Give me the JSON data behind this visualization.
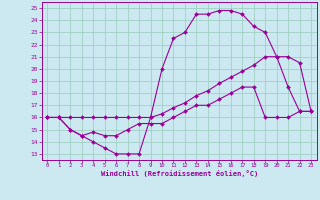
{
  "xlabel": "Windchill (Refroidissement éolien,°C)",
  "xlim": [
    -0.5,
    23.5
  ],
  "ylim": [
    12.5,
    25.5
  ],
  "xticks": [
    0,
    1,
    2,
    3,
    4,
    5,
    6,
    7,
    8,
    9,
    10,
    11,
    12,
    13,
    14,
    15,
    16,
    17,
    18,
    19,
    20,
    21,
    22,
    23
  ],
  "yticks": [
    13,
    14,
    15,
    16,
    17,
    18,
    19,
    20,
    21,
    22,
    23,
    24,
    25
  ],
  "bg_color": "#cce8f0",
  "line_color": "#990099",
  "grid_color": "#99ccbb",
  "line1_x": [
    0,
    1,
    2,
    3,
    4,
    5,
    6,
    7,
    8,
    9,
    10,
    11,
    12,
    13,
    14,
    15,
    16,
    17,
    18,
    19,
    20,
    21,
    22,
    23
  ],
  "line1_y": [
    16,
    16,
    15,
    14.5,
    14,
    13.5,
    13,
    13,
    13,
    16,
    20,
    22.5,
    23,
    24.5,
    24.5,
    24.8,
    24.8,
    24.5,
    23.5,
    23,
    21,
    18.5,
    16.5,
    16.5
  ],
  "line2_x": [
    0,
    1,
    2,
    3,
    4,
    5,
    6,
    7,
    8,
    9,
    10,
    11,
    12,
    13,
    14,
    15,
    16,
    17,
    18,
    19,
    20,
    21,
    22,
    23
  ],
  "line2_y": [
    16,
    16,
    16,
    16,
    16,
    16,
    16,
    16,
    16,
    16,
    16.3,
    16.8,
    17.2,
    17.8,
    18.2,
    18.8,
    19.3,
    19.8,
    20.3,
    21,
    21,
    21,
    20.5,
    16.5
  ],
  "line3_x": [
    0,
    1,
    2,
    3,
    4,
    5,
    6,
    7,
    8,
    9,
    10,
    11,
    12,
    13,
    14,
    15,
    16,
    17,
    18,
    19,
    20,
    21,
    22,
    23
  ],
  "line3_y": [
    16,
    16,
    15,
    14.5,
    14.8,
    14.5,
    14.5,
    15,
    15.5,
    15.5,
    15.5,
    16,
    16.5,
    17,
    17,
    17.5,
    18,
    18.5,
    18.5,
    16,
    16,
    16,
    16.5,
    16.5
  ]
}
